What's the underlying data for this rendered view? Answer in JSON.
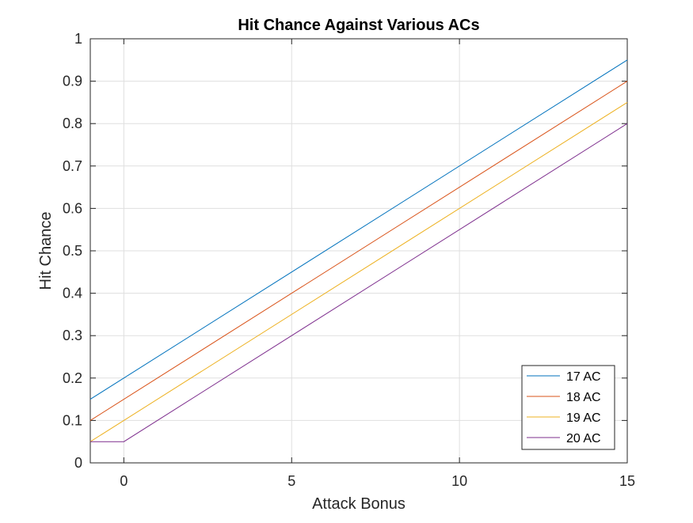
{
  "chart_data": {
    "type": "line",
    "title": "Hit Chance Against Various ACs",
    "xlabel": "Attack Bonus",
    "ylabel": "Hit Chance",
    "xlim": [
      -1,
      15
    ],
    "ylim": [
      0,
      1
    ],
    "x_ticks": [
      0,
      5,
      10,
      15
    ],
    "x_tick_labels": [
      "0",
      "5",
      "10",
      "15"
    ],
    "y_ticks": [
      0,
      0.1,
      0.2,
      0.3,
      0.4,
      0.5,
      0.6,
      0.7,
      0.8,
      0.9,
      1
    ],
    "y_tick_labels": [
      "0",
      "0.1",
      "0.2",
      "0.3",
      "0.4",
      "0.5",
      "0.6",
      "0.7",
      "0.8",
      "0.9",
      "1"
    ],
    "grid": true,
    "legend_position": "bottom-right",
    "series": [
      {
        "name": "17 AC",
        "color": "#0072BD",
        "x": [
          -1,
          15
        ],
        "y": [
          0.15,
          0.95
        ]
      },
      {
        "name": "18 AC",
        "color": "#D95319",
        "x": [
          -1,
          15
        ],
        "y": [
          0.1,
          0.9
        ]
      },
      {
        "name": "19 AC",
        "color": "#EDB120",
        "x": [
          -1,
          15
        ],
        "y": [
          0.05,
          0.85
        ]
      },
      {
        "name": "20 AC",
        "color": "#7E2F8E",
        "x": [
          -1,
          0,
          15
        ],
        "y": [
          0.05,
          0.05,
          0.8
        ]
      }
    ]
  }
}
